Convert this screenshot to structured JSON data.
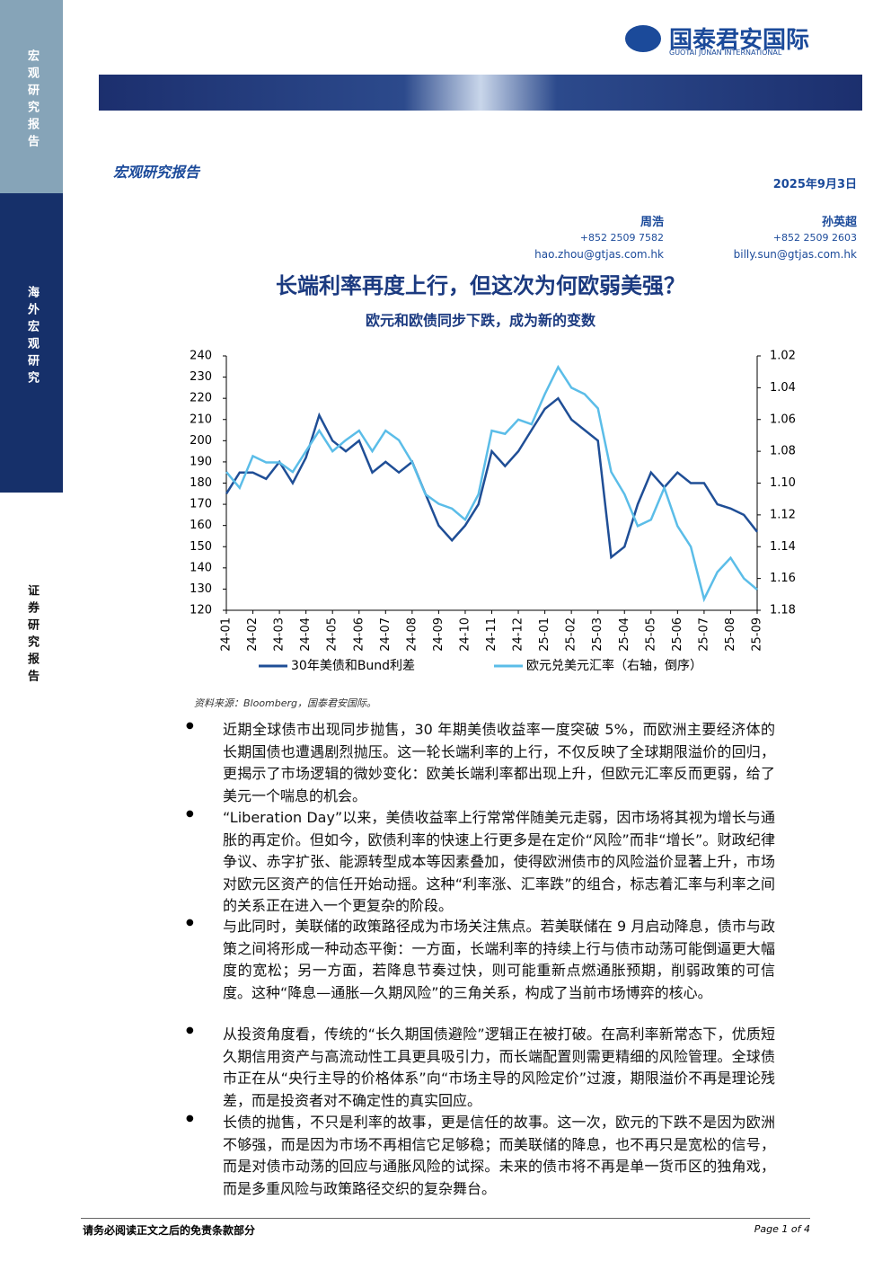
{
  "sidebar": {
    "top": "宏观研究报告",
    "middle": "海外宏观研究",
    "bottom": "证券研究报告"
  },
  "header": {
    "logo": "国泰君安国际",
    "logo_en": "GUOTAI JUNAN INTERNATIONAL",
    "section": "宏观研究报告",
    "date": "2025年9月3日",
    "authors": [
      {
        "name": "周浩",
        "phone": "+852 2509 7582",
        "email": "hao.zhou@gtjas.com.hk"
      },
      {
        "name": "孙英超",
        "phone": "+852 2509 2603",
        "email": "billy.sun@gtjas.com.hk"
      }
    ]
  },
  "title": "长端利率再度上行，但这次为何欧弱美强？",
  "subtitle": "欧元和欧债同步下跌，成为新的变数",
  "chart_data": {
    "type": "line",
    "categories": [
      "24-01",
      null,
      "24-02",
      null,
      "24-03",
      null,
      "24-04",
      null,
      "24-05",
      null,
      "24-06",
      null,
      "24-07",
      null,
      "24-08",
      null,
      "24-09",
      null,
      "24-10",
      null,
      "24-11",
      null,
      "24-12",
      null,
      "25-01",
      null,
      "25-02",
      null,
      "25-03",
      null,
      "25-04",
      null,
      "25-05",
      null,
      "25-06",
      null,
      "25-07",
      null,
      "25-08",
      null,
      "25-09"
    ],
    "series": [
      {
        "name": "30年美债和Bund利差",
        "color": "#1f4e96",
        "values": [
          175,
          185,
          185,
          182,
          190,
          180,
          192,
          212,
          200,
          195,
          200,
          185,
          190,
          185,
          190,
          175,
          160,
          153,
          160,
          170,
          195,
          188,
          195,
          205,
          215,
          220,
          210,
          205,
          200,
          145,
          150,
          170,
          185,
          178,
          185,
          180,
          180,
          170,
          168,
          165,
          157
        ]
      },
      {
        "name": "欧元兑美元汇率（右轴，倒序）",
        "color": "#5bbde8",
        "axis": "y2",
        "values": [
          1.093,
          1.103,
          1.083,
          1.087,
          1.087,
          1.093,
          1.08,
          1.067,
          1.08,
          1.073,
          1.067,
          1.08,
          1.067,
          1.073,
          1.087,
          1.107,
          1.113,
          1.116,
          1.123,
          1.107,
          1.067,
          1.069,
          1.06,
          1.063,
          1.044,
          1.027,
          1.04,
          1.044,
          1.053,
          1.093,
          1.107,
          1.127,
          1.123,
          1.103,
          1.127,
          1.14,
          1.173,
          1.156,
          1.147,
          1.16,
          1.167
        ]
      }
    ],
    "ylim": [
      120,
      240
    ],
    "yticks": [
      120,
      130,
      140,
      150,
      160,
      170,
      180,
      190,
      200,
      210,
      220,
      230,
      240
    ],
    "y2lim": [
      1.18,
      1.02
    ],
    "y2ticks": [
      1.02,
      1.04,
      1.06,
      1.08,
      {
        "value": 1.1,
        "label": "1.10"
      },
      1.12,
      1.14,
      1.16,
      1.18
    ],
    "grid": false
  },
  "source": "资料来源：Bloomberg，国泰君安国际。",
  "bullets": [
    "近期全球债市出现同步抛售，30 年期美债收益率一度突破 5%，而欧洲主要经济体的长期国债也遭遇剧烈抛压。这一轮长端利率的上行，不仅反映了全球期限溢价的回归，更揭示了市场逻辑的微妙变化：欧美长端利率都出现上升，但欧元汇率反而更弱，给了美元一个喘息的机会。",
    "“Liberation Day”以来，美债收益率上行常常伴随美元走弱，因市场将其视为增长与通胀的再定价。但如今，欧债利率的快速上行更多是在定价“风险”而非“增长”。财政纪律争议、赤字扩张、能源转型成本等因素叠加，使得欧洲债市的风险溢价显著上升，市场对欧元区资产的信任开始动摇。这种“利率涨、汇率跌”的组合，标志着汇率与利率之间的关系正在进入一个更复杂的阶段。",
    "与此同时，美联储的政策路径成为市场关注焦点。若美联储在 9 月启动降息，债市与政策之间将形成一种动态平衡：一方面，长端利率的持续上行与债市动荡可能倒逼更大幅度的宽松；另一方面，若降息节奏过快，则可能重新点燃通胀预期，削弱政策的可信度。这种“降息—通胀—久期风险”的三角关系，构成了当前市场博弈的核心。",
    "从投资角度看，传统的“长久期国债避险”逻辑正在被打破。在高利率新常态下，优质短久期信用资产与高流动性工具更具吸引力，而长端配置则需更精细的风险管理。全球债市正在从“央行主导的价格体系”向“市场主导的风险定价”过渡，期限溢价不再是理论残差，而是投资者对不确定性的真实回应。",
    "长债的抛售，不只是利率的故事，更是信任的故事。这一次，欧元的下跌不是因为欧洲不够强，而是因为市场不再相信它足够稳；而美联储的降息，也不再只是宽松的信号，而是对债市动荡的回应与通胀风险的试探。未来的债市将不再是单一货币区的独角戏，而是多重风险与政策路径交织的复杂舞台。"
  ],
  "footer": {
    "disclaimer": "请务必阅读正文之后的免责条款部分",
    "page": "Page 1 of 4"
  }
}
